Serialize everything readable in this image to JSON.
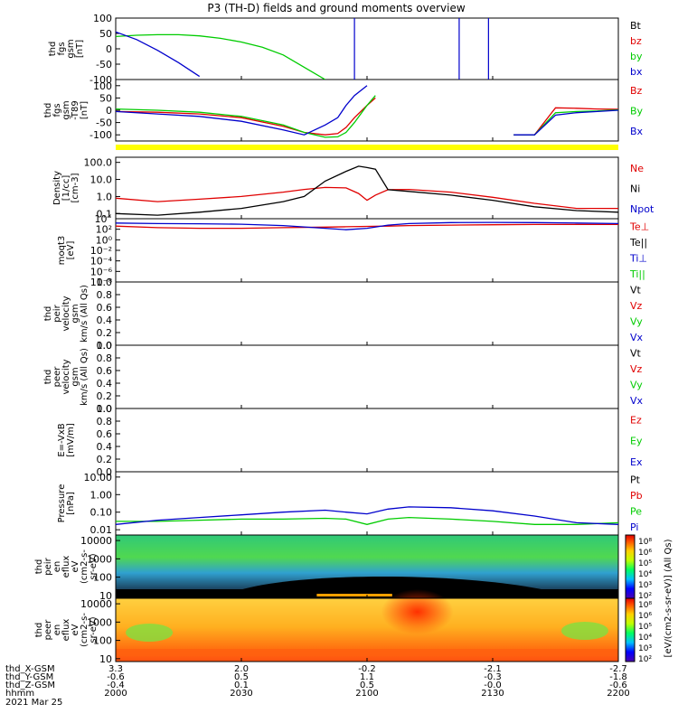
{
  "title": "P3 (TH-D) fields and ground moments overview",
  "colors": {
    "black": "#000000",
    "red": "#e00000",
    "green": "#00cc00",
    "blue": "#0000cc",
    "yellow": "#ffff00"
  },
  "panels": [
    {
      "id": "fgs",
      "ylabel": [
        "thd",
        "fgs",
        "gsm",
        "[nT]"
      ],
      "yscale": "linear",
      "ylim": [
        -100,
        100
      ],
      "ticks": [
        "100",
        "50",
        "0",
        "-50",
        "-100"
      ],
      "legend": [
        {
          "text": "Bt",
          "color": "#000000"
        },
        {
          "text": "bz",
          "color": "#e00000"
        },
        {
          "text": "by",
          "color": "#00cc00"
        },
        {
          "text": "bx",
          "color": "#0000cc"
        }
      ]
    },
    {
      "id": "fgs_dipole",
      "ylabel": [
        "thd",
        "fgs",
        "gsm",
        "-T89",
        "[nT]"
      ],
      "yscale": "linear",
      "ylim": [
        -125,
        125
      ],
      "ticks": [
        "100",
        "50",
        "0",
        "-50",
        "-100"
      ],
      "legend": [
        {
          "text": "Bz",
          "color": "#e00000"
        },
        {
          "text": "By",
          "color": "#00cc00"
        },
        {
          "text": "Bx",
          "color": "#0000cc"
        }
      ]
    },
    {
      "id": "density",
      "ylabel": [
        "Density",
        "[1/cc]",
        "[cm-3]"
      ],
      "yscale": "log",
      "ylim": [
        0.05,
        200
      ],
      "ticks": [
        "100.0",
        "10.0",
        "1.0",
        "0.1"
      ],
      "legend": [
        {
          "text": "Ne",
          "color": "#e00000"
        },
        {
          "text": "Ni",
          "color": "#000000"
        },
        {
          "text": "Npot",
          "color": "#0000cc"
        }
      ]
    },
    {
      "id": "temp",
      "ylabel": [
        "moqt3",
        "[eV]"
      ],
      "yscale": "log",
      "ylim": [
        1e-08,
        10000.0
      ],
      "ticks": [
        "10´",
        "10²",
        "10⁰",
        "10⁻²",
        "10⁻⁴",
        "10⁻⁶",
        "10⁻⁸"
      ],
      "legend": [
        {
          "text": "Te⊥",
          "color": "#e00000"
        },
        {
          "text": "Te||",
          "color": "#000000"
        },
        {
          "text": "Ti⊥",
          "color": "#0000cc"
        },
        {
          "text": "Ti||",
          "color": "#00cc00"
        }
      ]
    },
    {
      "id": "vi",
      "ylabel": [
        "thd",
        "peir",
        "velocity",
        "gsm",
        "km/s (All Qs)"
      ],
      "yscale": "linear",
      "ylim": [
        0,
        1
      ],
      "ticks": [
        "1.0",
        "0.8",
        "0.6",
        "0.4",
        "0.2",
        "0.0"
      ],
      "legend": [
        {
          "text": "Vt",
          "color": "#000000"
        },
        {
          "text": "Vz",
          "color": "#e00000"
        },
        {
          "text": "Vy",
          "color": "#00cc00"
        },
        {
          "text": "Vx",
          "color": "#0000cc"
        }
      ]
    },
    {
      "id": "ve",
      "ylabel": [
        "thd",
        "peer",
        "velocity",
        "gsm",
        "km/s (All Qs)"
      ],
      "yscale": "linear",
      "ylim": [
        0,
        1
      ],
      "ticks": [
        "1.0",
        "0.8",
        "0.6",
        "0.4",
        "0.2",
        "0.0"
      ],
      "legend": [
        {
          "text": "Vt",
          "color": "#000000"
        },
        {
          "text": "Vz",
          "color": "#e00000"
        },
        {
          "text": "Vy",
          "color": "#00cc00"
        },
        {
          "text": "Vx",
          "color": "#0000cc"
        }
      ]
    },
    {
      "id": "efield",
      "ylabel": [
        "E=-VxB",
        "[mV/m]"
      ],
      "yscale": "linear",
      "ylim": [
        0,
        1
      ],
      "ticks": [
        "1.0",
        "0.8",
        "0.6",
        "0.4",
        "0.2",
        "0.0"
      ],
      "legend": [
        {
          "text": "Ez",
          "color": "#e00000"
        },
        {
          "text": "Ey",
          "color": "#00cc00"
        },
        {
          "text": "Ex",
          "color": "#0000cc"
        }
      ]
    },
    {
      "id": "pressure",
      "ylabel": [
        "Pressure",
        "[nPa]"
      ],
      "yscale": "log",
      "ylim": [
        0.005,
        20
      ],
      "ticks": [
        "10.00",
        "1.00",
        "0.10",
        "0.01"
      ],
      "legend": [
        {
          "text": "Pt",
          "color": "#000000"
        },
        {
          "text": "Pb",
          "color": "#e00000"
        },
        {
          "text": "Pe",
          "color": "#00cc00"
        },
        {
          "text": "Pi",
          "color": "#0000cc"
        }
      ]
    },
    {
      "id": "ion_spec",
      "ylabel": [
        "thd",
        "peir",
        "en",
        "eflux",
        "eV",
        "(cm2-s-",
        "sr-eV)"
      ],
      "yscale": "log",
      "ylim": [
        7,
        20000
      ],
      "ticks": [
        "10000",
        "1000",
        "100",
        "10"
      ],
      "legend": []
    },
    {
      "id": "elec_spec",
      "ylabel": [
        "thd",
        "peer",
        "en",
        "eflux",
        "eV",
        "(cm2-s-",
        "sr-eV)"
      ],
      "yscale": "log",
      "ylim": [
        7,
        20000
      ],
      "ticks": [
        "10000",
        "1000",
        "100",
        "10"
      ],
      "legend": []
    }
  ],
  "colorbar": {
    "label": "[eV/(cm2-s-sr-eV)] (All Qs)",
    "ticks_upper": [
      "10⁸",
      "10⁶",
      "10⁵",
      "10⁴",
      "10³",
      "10²"
    ],
    "ticks_lower": [
      "10⁸",
      "10⁶",
      "10⁵",
      "10⁴",
      "10³",
      "10²"
    ]
  },
  "xaxis": {
    "rows": [
      {
        "label": "thd_X-GSM",
        "values": [
          "3.3",
          "2.0",
          "-0.2",
          "-2.1",
          "-2.7"
        ]
      },
      {
        "label": "thd_Y-GSM",
        "values": [
          "-0.6",
          "0.5",
          "1.1",
          "-0.3",
          "-1.8"
        ]
      },
      {
        "label": "thd_Z-GSM",
        "values": [
          "-0.4",
          "0.1",
          "0.5",
          "-0.0",
          "-0.6"
        ]
      },
      {
        "label": "hhmm",
        "values": [
          "2000",
          "2030",
          "2100",
          "2130",
          "2200"
        ]
      }
    ],
    "date": "2021 Mar 25"
  },
  "chart_data": [
    {
      "type": "line",
      "panel": "fgs",
      "x_minutes": [
        0,
        5,
        10,
        15,
        20,
        25,
        30,
        35,
        40,
        45,
        50,
        55,
        60,
        65,
        70,
        75,
        80,
        85,
        90,
        95,
        100,
        105,
        110,
        115,
        120
      ],
      "series": [
        {
          "name": "by",
          "values": [
            40,
            44,
            46,
            46,
            42,
            34,
            22,
            5,
            -20,
            -60,
            -100,
            null,
            null,
            null,
            null,
            null,
            null,
            null,
            null,
            null,
            null,
            null,
            null,
            null,
            null
          ]
        },
        {
          "name": "bx",
          "values": [
            55,
            30,
            -5,
            -45,
            -90,
            null,
            null,
            null,
            null,
            null,
            null,
            null,
            null,
            null,
            null,
            null,
            null,
            null,
            null,
            null,
            null,
            null,
            null,
            null,
            null
          ]
        }
      ]
    },
    {
      "type": "line",
      "panel": "fgs_dipole",
      "x_minutes": [
        0,
        10,
        20,
        30,
        40,
        45,
        50,
        53,
        55,
        57,
        60,
        62,
        65,
        70,
        75,
        80,
        85,
        90,
        95,
        100,
        105,
        110,
        115,
        120
      ],
      "series": [
        {
          "name": "Bz",
          "values": [
            -5,
            -8,
            -15,
            -30,
            -65,
            -90,
            -100,
            -95,
            -70,
            -30,
            20,
            50,
            null,
            null,
            null,
            null,
            null,
            null,
            -100,
            -100,
            10,
            8,
            5,
            4
          ]
        },
        {
          "name": "By",
          "values": [
            5,
            0,
            -8,
            -25,
            -60,
            -90,
            -110,
            -108,
            -90,
            -50,
            20,
            60,
            null,
            null,
            null,
            null,
            null,
            null,
            -100,
            -100,
            -10,
            -5,
            -3,
            2
          ]
        },
        {
          "name": "Bx",
          "values": [
            -5,
            -15,
            -25,
            -45,
            -80,
            -100,
            -60,
            -30,
            20,
            60,
            100,
            null,
            null,
            null,
            null,
            null,
            null,
            null,
            -100,
            -100,
            -20,
            -10,
            -5,
            0
          ]
        }
      ]
    },
    {
      "type": "line",
      "panel": "density",
      "x_minutes": [
        0,
        10,
        20,
        30,
        40,
        45,
        50,
        55,
        58,
        60,
        62,
        65,
        70,
        80,
        90,
        100,
        110,
        120
      ],
      "series": [
        {
          "name": "Ne",
          "values": [
            0.8,
            0.5,
            0.7,
            1.0,
            1.8,
            2.6,
            3.4,
            3.2,
            1.5,
            0.6,
            1.2,
            2.5,
            2.6,
            1.8,
            0.9,
            0.4,
            0.2,
            0.2
          ]
        },
        {
          "name": "Ni",
          "values": [
            0.1,
            0.08,
            0.12,
            0.2,
            0.5,
            1.0,
            8,
            30,
            60,
            50,
            40,
            2.5,
            2.0,
            1.2,
            0.6,
            0.25,
            0.15,
            0.12
          ]
        }
      ]
    },
    {
      "type": "line",
      "panel": "temp",
      "x_minutes": [
        0,
        10,
        20,
        30,
        40,
        50,
        55,
        60,
        65,
        70,
        80,
        90,
        100,
        110,
        120
      ],
      "series": [
        {
          "name": "Te⊥",
          "values": [
            400,
            200,
            150,
            150,
            200,
            250,
            300,
            350,
            400,
            500,
            600,
            700,
            800,
            800,
            800
          ]
        },
        {
          "name": "Ti⊥",
          "values": [
            1500,
            1200,
            1100,
            900,
            500,
            150,
            80,
            150,
            600,
            1200,
            1800,
            2000,
            1800,
            1500,
            1200
          ]
        }
      ]
    },
    {
      "type": "line",
      "panel": "pressure",
      "x_minutes": [
        0,
        10,
        20,
        30,
        40,
        50,
        55,
        60,
        65,
        70,
        80,
        90,
        100,
        110,
        120
      ],
      "series": [
        {
          "name": "Pe",
          "values": [
            0.03,
            0.03,
            0.035,
            0.04,
            0.04,
            0.045,
            0.04,
            0.02,
            0.04,
            0.05,
            0.04,
            0.03,
            0.02,
            0.02,
            0.025
          ]
        },
        {
          "name": "Pi",
          "values": [
            0.02,
            0.035,
            0.05,
            0.07,
            0.1,
            0.13,
            0.1,
            0.08,
            0.15,
            0.2,
            0.18,
            0.12,
            0.06,
            0.025,
            0.02
          ]
        }
      ]
    }
  ]
}
